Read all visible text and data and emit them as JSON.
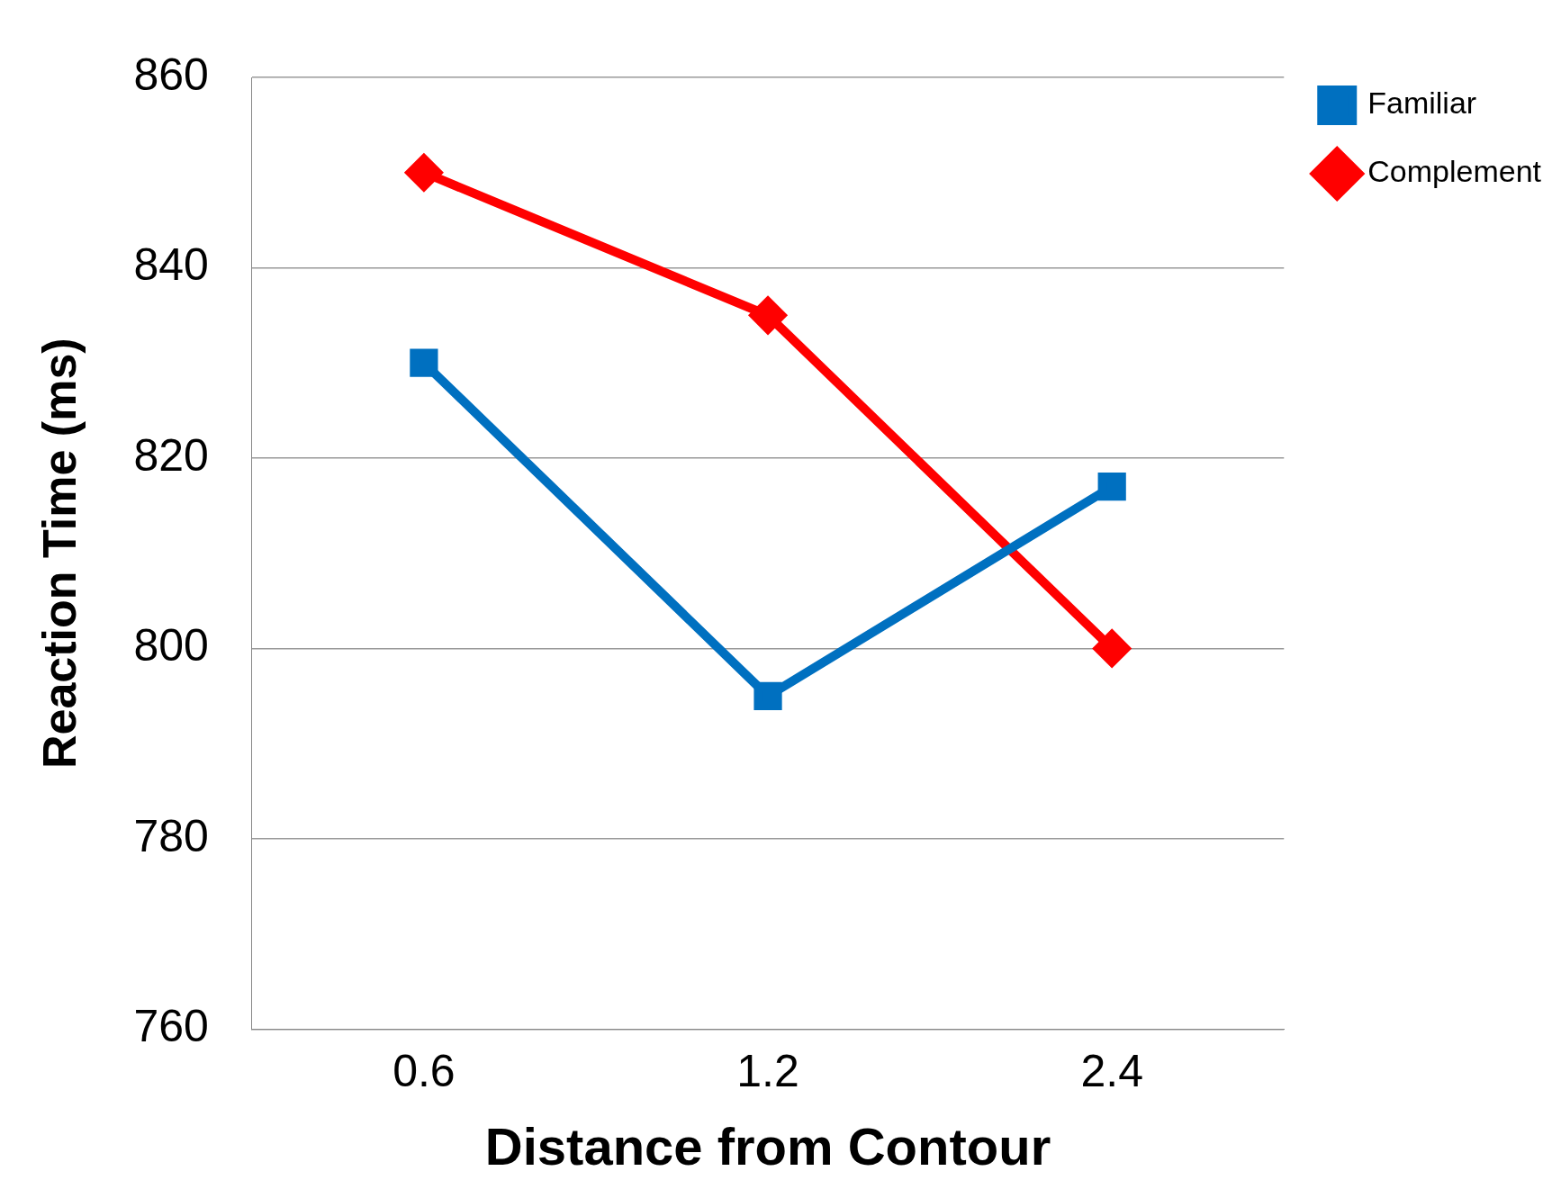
{
  "chart_data": {
    "type": "line",
    "xlabel": "Distance from Contour",
    "ylabel": "Reaction Time (ms)",
    "categories": [
      "0.6",
      "1.2",
      "2.4"
    ],
    "series": [
      {
        "name": "Familiar",
        "color": "#0070c0",
        "values": [
          830,
          795,
          817
        ],
        "marker": "square"
      },
      {
        "name": "Complement",
        "color": "#ff0000",
        "values": [
          850,
          835,
          800
        ],
        "marker": "diamond"
      }
    ],
    "ylim": [
      760,
      860
    ],
    "yticks": [
      760,
      780,
      800,
      820,
      840,
      860
    ],
    "grid": "y",
    "legend": "top right",
    "line_style": "solid"
  }
}
